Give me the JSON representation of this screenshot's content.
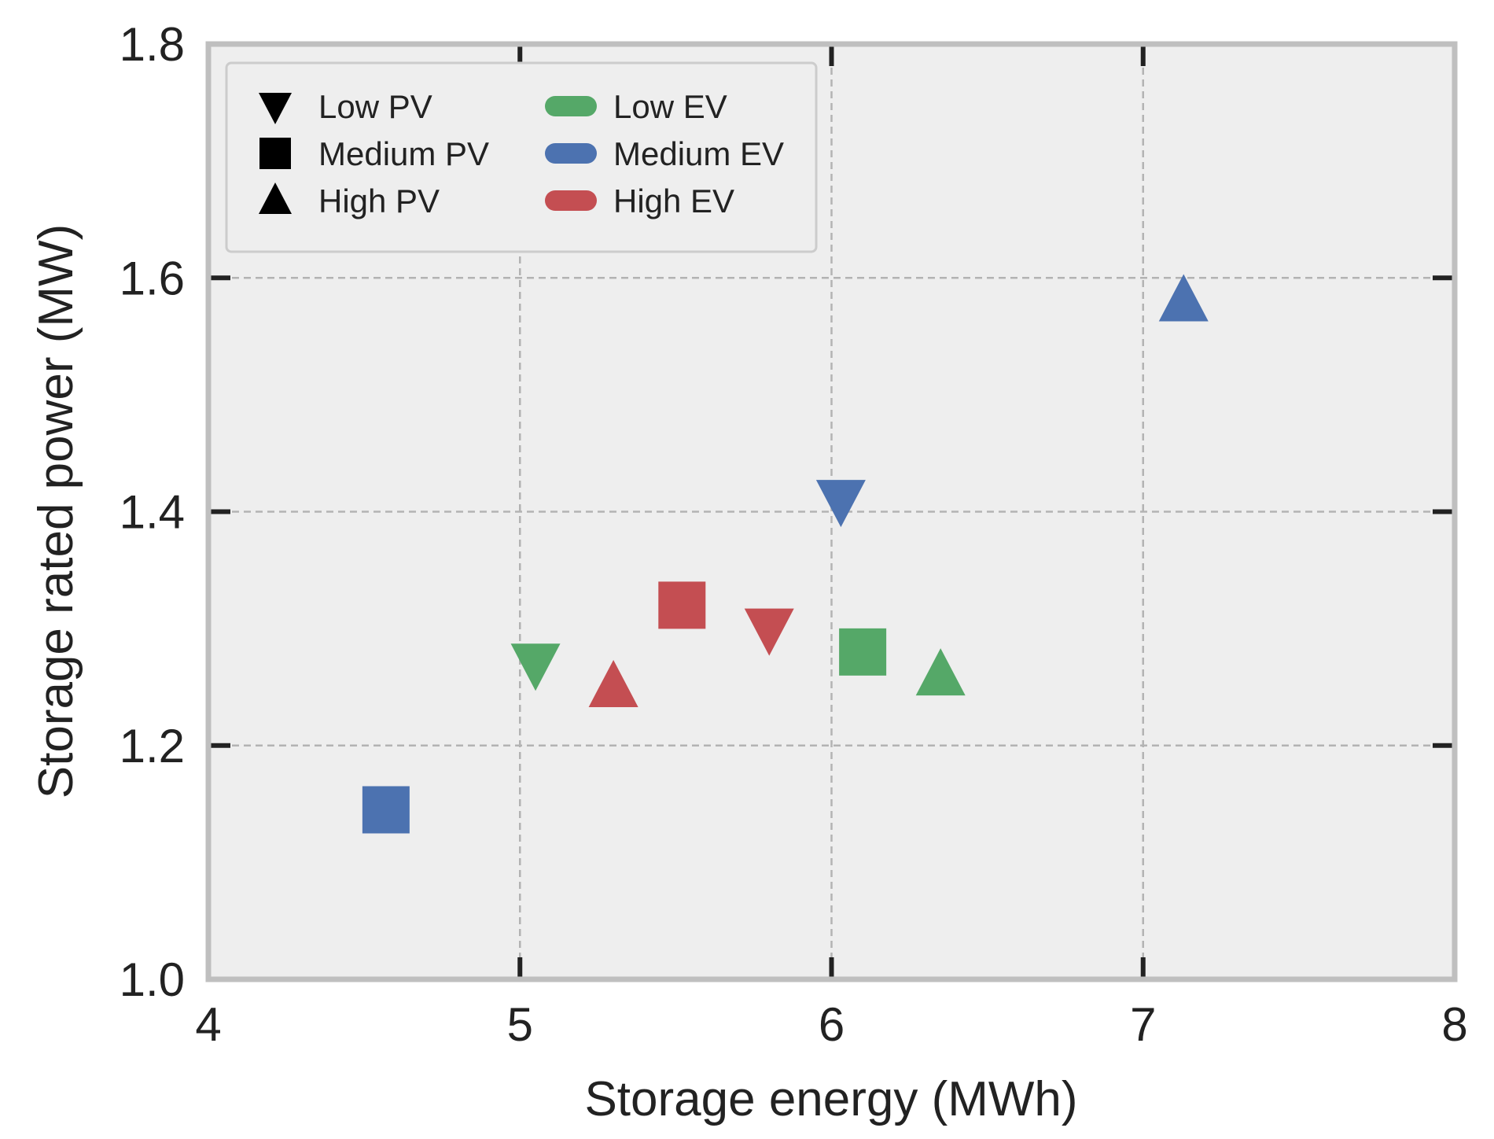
{
  "chart_data": {
    "type": "scatter",
    "title": "",
    "xlabel": "Storage energy (MWh)",
    "ylabel": "Storage rated power (MW)",
    "xlim": [
      4,
      8
    ],
    "ylim": [
      1.0,
      1.8
    ],
    "xticks": [
      "4",
      "5",
      "6",
      "7",
      "8"
    ],
    "yticks": [
      "1.0",
      "1.2",
      "1.4",
      "1.6",
      "1.8"
    ],
    "xtick_values": [
      4,
      5,
      6,
      7,
      8
    ],
    "ytick_values": [
      1.0,
      1.2,
      1.4,
      1.6,
      1.8
    ],
    "grid": true,
    "legend_position": "top-left",
    "legend": {
      "markers": [
        {
          "label": "Low PV",
          "shape": "triangle-down"
        },
        {
          "label": "Medium PV",
          "shape": "square"
        },
        {
          "label": "High PV",
          "shape": "triangle-up"
        }
      ],
      "colors": [
        {
          "label": "Low EV",
          "color": "#55a868"
        },
        {
          "label": "Medium EV",
          "color": "#4c72b0"
        },
        {
          "label": "High EV",
          "color": "#c44e52"
        }
      ]
    },
    "points": [
      {
        "pv": "Low PV",
        "ev": "Low EV",
        "shape": "triangle-down",
        "color": "#55a868",
        "x": 5.05,
        "y": 1.27
      },
      {
        "pv": "Medium PV",
        "ev": "Low EV",
        "shape": "square",
        "color": "#55a868",
        "x": 6.1,
        "y": 1.28
      },
      {
        "pv": "High PV",
        "ev": "Low EV",
        "shape": "triangle-up",
        "color": "#55a868",
        "x": 6.35,
        "y": 1.26
      },
      {
        "pv": "Low PV",
        "ev": "Medium EV",
        "shape": "triangle-down",
        "color": "#4c72b0",
        "x": 6.03,
        "y": 1.41
      },
      {
        "pv": "Medium PV",
        "ev": "Medium EV",
        "shape": "square",
        "color": "#4c72b0",
        "x": 4.57,
        "y": 1.145
      },
      {
        "pv": "High PV",
        "ev": "Medium EV",
        "shape": "triangle-up",
        "color": "#4c72b0",
        "x": 7.13,
        "y": 1.58
      },
      {
        "pv": "Low PV",
        "ev": "High EV",
        "shape": "triangle-down",
        "color": "#c44e52",
        "x": 5.8,
        "y": 1.3
      },
      {
        "pv": "Medium PV",
        "ev": "High EV",
        "shape": "square",
        "color": "#c44e52",
        "x": 5.52,
        "y": 1.32
      },
      {
        "pv": "High PV",
        "ev": "High EV",
        "shape": "triangle-up",
        "color": "#c44e52",
        "x": 5.3,
        "y": 1.25
      }
    ],
    "colors": {
      "plot_bg": "#eeeeee",
      "frame": "#bfbfbf",
      "grid": "#b3b3b3",
      "tick": "#222222"
    }
  }
}
